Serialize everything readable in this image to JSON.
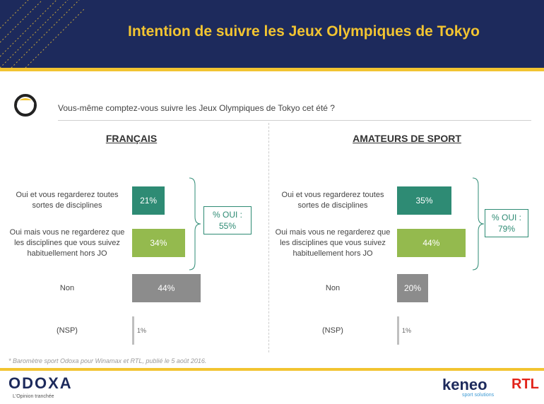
{
  "header": {
    "title": "Intention de suivre les Jeux Olympiques de Tokyo"
  },
  "question": "Vous-même comptez-vous suivre les Jeux Olympiques de Tokyo cet été ?",
  "colors": {
    "navy": "#1d2a5c",
    "gold": "#f2c431",
    "dark_green": "#2e8b74",
    "light_green": "#94ba4e",
    "grey": "#8c8c8c",
    "light_grey": "#bfbfbf"
  },
  "chart_data": [
    {
      "type": "bar",
      "title": "FRANÇAIS",
      "categories": [
        "Oui et vous regarderez toutes sortes de disciplines",
        "Oui mais vous ne regarderez que les disciplines que vous suivez habituellement hors JO",
        "Non",
        "(NSP)"
      ],
      "values": [
        21,
        34,
        44,
        1
      ],
      "value_labels": [
        "21%",
        "34%",
        "44%",
        "1%"
      ],
      "oui_total": {
        "label": "% OUI :",
        "value": "55%"
      }
    },
    {
      "type": "bar",
      "title": "AMATEURS DE SPORT",
      "categories": [
        "Oui et vous regarderez toutes sortes de disciplines",
        "Oui mais vous ne regarderez que les disciplines que vous suivez habituellement hors JO",
        "Non",
        "(NSP)"
      ],
      "values": [
        35,
        44,
        20,
        1
      ],
      "value_labels": [
        "35%",
        "44%",
        "20%",
        "1%"
      ],
      "oui_total": {
        "label": "% OUI :",
        "value": "79%"
      }
    }
  ],
  "footnote": "* Baromètre sport Odoxa pour Winamax et RTL, publié le 5 août 2016.",
  "footer": {
    "odoxa": "ODOXA",
    "odoxa_tagline": "L'Opinion tranchée",
    "keneo": "keneo",
    "keneo_tagline": "sport solutions",
    "rtl": "RTL"
  }
}
